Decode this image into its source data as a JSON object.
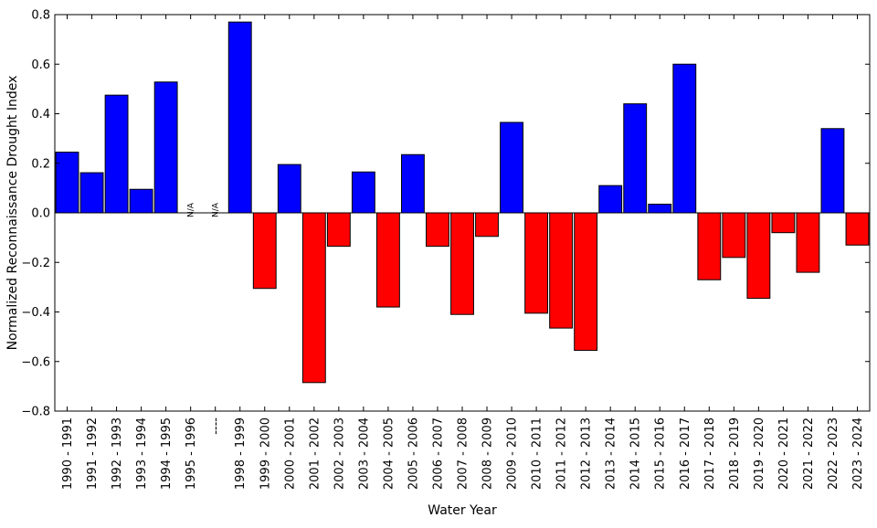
{
  "chart_data": {
    "type": "bar",
    "title": "",
    "xlabel": "Water Year",
    "ylabel": "Normalized Reconnaissance Drought Index",
    "ylim": [
      -0.8,
      0.8
    ],
    "yticks": [
      "−0.8",
      "−0.6",
      "−0.4",
      "−0.2",
      "0.0",
      "0.2",
      "0.4",
      "0.6",
      "0.8"
    ],
    "grid": false,
    "legend": "none",
    "colors": {
      "positive": "#0000ff",
      "negative": "#ff0000",
      "edge": "#000000"
    },
    "missing_label": "N/A",
    "categories": [
      "1990 - 1991",
      "1991 - 1992",
      "1992 - 1993",
      "1993 - 1994",
      "1994 - 1995",
      "1995 - 1996",
      "----",
      "1998 - 1999",
      "1999 - 2000",
      "2000 - 2001",
      "2001 - 2002",
      "2002 - 2003",
      "2003 - 2004",
      "2004 - 2005",
      "2005 - 2006",
      "2006 - 2007",
      "2007 - 2008",
      "2008 - 2009",
      "2009 - 2010",
      "2010 - 2011",
      "2011 - 2012",
      "2012 - 2013",
      "2013 - 2014",
      "2014 - 2015",
      "2015 - 2016",
      "2016 - 2017",
      "2017 - 2018",
      "2018 - 2019",
      "2019 - 2020",
      "2020 - 2021",
      "2021 - 2022",
      "2022 - 2023",
      "2023 - 2024"
    ],
    "values": [
      0.245,
      0.162,
      0.475,
      0.095,
      0.528,
      null,
      null,
      0.77,
      -0.305,
      0.195,
      -0.685,
      -0.135,
      0.165,
      -0.38,
      0.235,
      -0.135,
      -0.41,
      -0.095,
      0.365,
      -0.405,
      -0.465,
      -0.555,
      0.11,
      0.44,
      0.035,
      0.6,
      -0.27,
      -0.18,
      -0.345,
      -0.08,
      -0.24,
      0.34,
      -0.13
    ]
  }
}
